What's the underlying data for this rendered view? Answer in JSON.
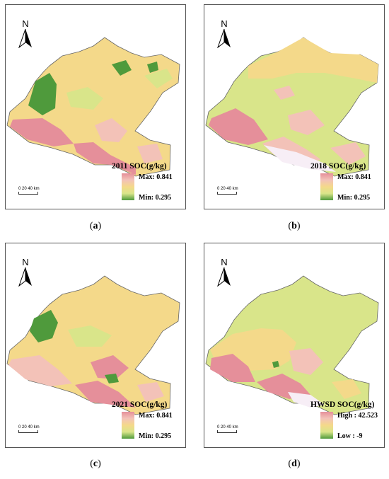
{
  "panels": [
    {
      "title": "2011 SOC(g/kg)",
      "max_label": "Max: 0.841",
      "min_label": "Min: 0.295",
      "caption": "(a)"
    },
    {
      "title": "2018 SOC(g/kg)",
      "max_label": "Max: 0.841",
      "min_label": "Min: 0.295",
      "caption": "(b)"
    },
    {
      "title": "2021 SOC(g/kg)",
      "max_label": "Max: 0.841",
      "min_label": "Min: 0.295",
      "caption": "(c)"
    },
    {
      "title": "HWSD SOC(g/kg)",
      "max_label": "High : 42.523",
      "min_label": "Low : -9",
      "caption": "(d)"
    }
  ],
  "north_label": "N",
  "scale_text": "0  20 40    km",
  "colors": {
    "high": "#e58f9a",
    "mid_high": "#f3c2b8",
    "mid": "#f4d98a",
    "mid_low": "#d9e58a",
    "low": "#4f9a3c",
    "nodata_white": "#f7eef6"
  }
}
